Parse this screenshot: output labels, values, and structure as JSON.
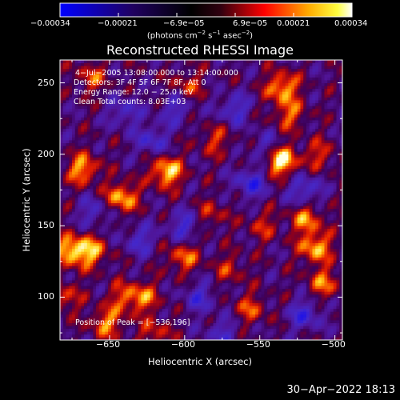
{
  "chart_data": {
    "type": "heatmap",
    "title": "Reconstructed RHESSI Image",
    "xlabel": "Heliocentric X (arcsec)",
    "ylabel": "Heliocentric Y (arcsec)",
    "xlim": [
      -683,
      -495
    ],
    "ylim": [
      70,
      266
    ],
    "xticks": [
      -650,
      -600,
      -550,
      -500
    ],
    "xtick_labels": [
      "−650",
      "−600",
      "−550",
      "−500"
    ],
    "yticks": [
      100,
      150,
      200,
      250
    ],
    "ytick_labels": [
      "100",
      "150",
      "200",
      "250"
    ],
    "colorbar": {
      "range": [
        -0.00034,
        0.00034
      ],
      "tick_labels": [
        "−0.00034",
        "−0.00021",
        "−6.9e−05",
        "6.9e−05",
        "0.00021",
        "0.00034"
      ],
      "units_prefix": "(photons cm",
      "units_exp1": "−2",
      "units_mid": " s",
      "units_exp2": "−1",
      "units_mid2": " asec",
      "units_exp3": "−2",
      "units_suffix": ")",
      "colormap": [
        "#0000ff",
        "#000000",
        "#ff0000",
        "#ffff00",
        "#ffffff"
      ]
    },
    "annotations": [
      "4−Jul−2005 13:08:00.000 to 13:14:00.000",
      "Detectors: 3F 4F 5F 6F 7F 8F, Att 0",
      "Energy Range: 12.0 − 25.0 keV",
      "Clean    Total counts: 8.03E+03"
    ],
    "peak_label": "Position of Peak = [−536,196]",
    "peak": [
      -536,
      196
    ],
    "bright_sources": [
      {
        "x": -536,
        "y": 196,
        "value": 1.0
      },
      {
        "x": -612,
        "y": 188,
        "value": 0.85
      },
      {
        "x": -668,
        "y": 190,
        "value": 0.7
      },
      {
        "x": -642,
        "y": 170,
        "value": 0.75
      },
      {
        "x": -676,
        "y": 133,
        "value": 0.8
      },
      {
        "x": -662,
        "y": 132,
        "value": 0.65
      },
      {
        "x": -535,
        "y": 247,
        "value": 0.75
      },
      {
        "x": -530,
        "y": 228,
        "value": 0.5
      },
      {
        "x": -513,
        "y": 135,
        "value": 0.75
      },
      {
        "x": -519,
        "y": 155,
        "value": 0.6
      },
      {
        "x": -507,
        "y": 110,
        "value": 0.55
      },
      {
        "x": -601,
        "y": 128,
        "value": 0.55
      },
      {
        "x": -652,
        "y": 82,
        "value": 0.6
      },
      {
        "x": -627,
        "y": 100,
        "value": 0.5
      },
      {
        "x": -662,
        "y": 254,
        "value": 0.45
      },
      {
        "x": -640,
        "y": 100,
        "value": 0.45
      },
      {
        "x": -556,
        "y": 92,
        "value": 0.45
      },
      {
        "x": -580,
        "y": 210,
        "value": 0.4
      },
      {
        "x": -598,
        "y": 248,
        "value": 0.4
      },
      {
        "x": -548,
        "y": 150,
        "value": 0.35
      },
      {
        "x": -680,
        "y": 100,
        "value": 0.45
      },
      {
        "x": -582,
        "y": 158,
        "value": 0.35
      },
      {
        "x": -510,
        "y": 200,
        "value": 0.4
      },
      {
        "x": -620,
        "y": 75,
        "value": 0.4
      },
      {
        "x": -570,
        "y": 120,
        "value": 0.35
      }
    ],
    "negative_sources": [
      {
        "x": -556,
        "y": 180,
        "value": -0.6
      },
      {
        "x": -622,
        "y": 210,
        "value": -0.5
      },
      {
        "x": -520,
        "y": 175,
        "value": -0.55
      },
      {
        "x": -600,
        "y": 150,
        "value": -0.5
      },
      {
        "x": -640,
        "y": 230,
        "value": -0.45
      },
      {
        "x": -567,
        "y": 232,
        "value": -0.5
      },
      {
        "x": -520,
        "y": 88,
        "value": -0.55
      },
      {
        "x": -590,
        "y": 100,
        "value": -0.45
      },
      {
        "x": -630,
        "y": 140,
        "value": -0.45
      },
      {
        "x": -660,
        "y": 160,
        "value": -0.4
      },
      {
        "x": -575,
        "y": 75,
        "value": -0.4
      },
      {
        "x": -545,
        "y": 205,
        "value": -0.4
      },
      {
        "x": -606,
        "y": 232,
        "value": -0.45
      }
    ]
  },
  "footer": {
    "timestamp": "30−Apr−2022 18:13"
  }
}
